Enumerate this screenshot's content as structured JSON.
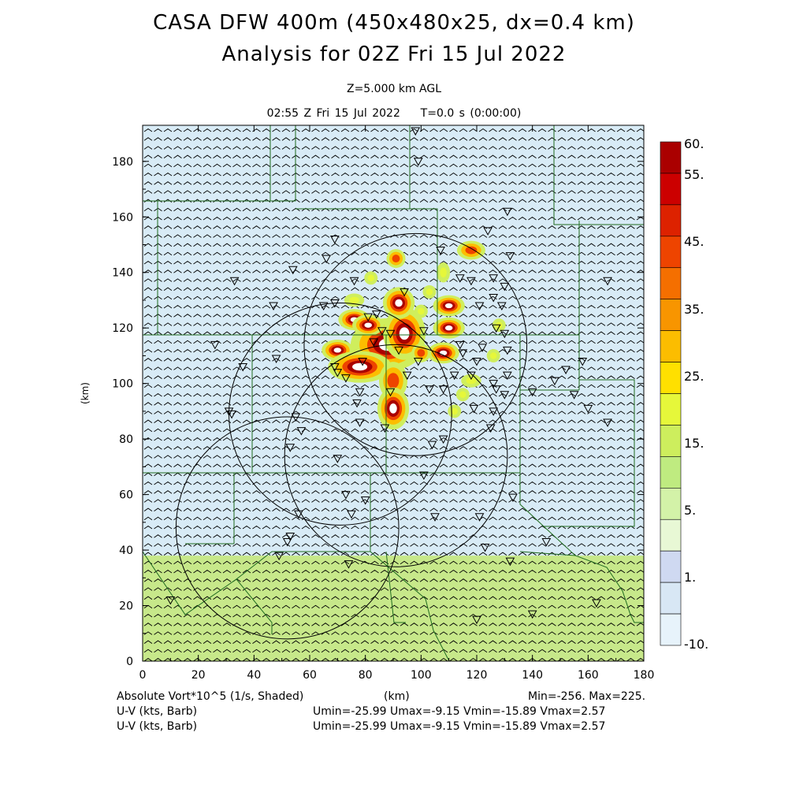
{
  "header": {
    "title_line1": "CASA DFW 400m (450x480x25, dx=0.4 km)",
    "title_line2": "Analysis for 02Z Fri 15 Jul 2022",
    "level": "Z=5.000 km AGL",
    "time": "02:55 Z Fri 15 Jul 2022    T=0.0 s (0:00:00)"
  },
  "axes": {
    "xlabel": "(km)",
    "ylabel": "(km)",
    "x_ticks": [
      "0",
      "20",
      "40",
      "60",
      "80",
      "100",
      "120",
      "140",
      "160",
      "180"
    ],
    "y_ticks": [
      "0",
      "20",
      "40",
      "60",
      "80",
      "100",
      "120",
      "140",
      "160",
      "180"
    ],
    "x_range": [
      0,
      180
    ],
    "y_range": [
      0,
      193
    ]
  },
  "colorbar": {
    "labels": [
      "60.",
      "55.",
      "45.",
      "35.",
      "25.",
      "15.",
      "5.",
      "1.",
      "-10."
    ],
    "colors": [
      "#aa0000",
      "#cc0000",
      "#dd2200",
      "#ee4400",
      "#f56f00",
      "#f89500",
      "#fcbd00",
      "#ffe000",
      "#e6f73a",
      "#cdee5d",
      "#bfeb80",
      "#d3f2a8",
      "#e8f8d5",
      "#cfd9f1",
      "#d8e7f5",
      "#e7f3fb"
    ]
  },
  "field": {
    "background_color": "#d8ebf6",
    "south_band_color": "#c7e88a",
    "south_band_top_km": 38,
    "wind_barb_color": "#000000",
    "boundary_color": "#1f6b1f"
  },
  "radars": [
    {
      "x": 98,
      "y": 114,
      "r": 40
    },
    {
      "x": 71,
      "y": 89,
      "r": 40
    },
    {
      "x": 91,
      "y": 74,
      "r": 40
    },
    {
      "x": 52,
      "y": 48,
      "r": 40
    }
  ],
  "storm_cells": [
    {
      "x": 88,
      "y": 114,
      "rx": 7,
      "ry": 5,
      "level": "high"
    },
    {
      "x": 94,
      "y": 118,
      "rx": 4,
      "ry": 5,
      "level": "high"
    },
    {
      "x": 92,
      "y": 129,
      "rx": 3,
      "ry": 3,
      "level": "high"
    },
    {
      "x": 76,
      "y": 123,
      "rx": 3,
      "ry": 2,
      "level": "high"
    },
    {
      "x": 81,
      "y": 121,
      "rx": 3,
      "ry": 2,
      "level": "high"
    },
    {
      "x": 70,
      "y": 112,
      "rx": 3,
      "ry": 2,
      "level": "high"
    },
    {
      "x": 78,
      "y": 106,
      "rx": 6,
      "ry": 3,
      "level": "high"
    },
    {
      "x": 90,
      "y": 101,
      "rx": 3,
      "ry": 4,
      "level": "mid"
    },
    {
      "x": 90,
      "y": 91,
      "rx": 3,
      "ry": 4,
      "level": "high"
    },
    {
      "x": 110,
      "y": 128,
      "rx": 3,
      "ry": 2,
      "level": "high"
    },
    {
      "x": 110,
      "y": 120,
      "rx": 3,
      "ry": 2,
      "level": "high"
    },
    {
      "x": 108,
      "y": 111,
      "rx": 3,
      "ry": 2,
      "level": "high"
    },
    {
      "x": 100,
      "y": 111,
      "rx": 2,
      "ry": 2,
      "level": "mid"
    },
    {
      "x": 118,
      "y": 148,
      "rx": 3,
      "ry": 2,
      "level": "mid"
    },
    {
      "x": 91,
      "y": 145,
      "rx": 2,
      "ry": 2,
      "level": "mid"
    },
    {
      "x": 118,
      "y": 101,
      "rx": 3,
      "ry": 2,
      "level": "low"
    },
    {
      "x": 128,
      "y": 121,
      "rx": 2,
      "ry": 2,
      "level": "low"
    },
    {
      "x": 108,
      "y": 140,
      "rx": 2,
      "ry": 3,
      "level": "low"
    },
    {
      "x": 82,
      "y": 138,
      "rx": 2,
      "ry": 2,
      "level": "low"
    },
    {
      "x": 76,
      "y": 130,
      "rx": 3,
      "ry": 2,
      "level": "low"
    },
    {
      "x": 115,
      "y": 96,
      "rx": 2,
      "ry": 2,
      "level": "low"
    },
    {
      "x": 112,
      "y": 90,
      "rx": 2,
      "ry": 2,
      "level": "low"
    },
    {
      "x": 100,
      "y": 126,
      "rx": 2,
      "ry": 2,
      "level": "low"
    },
    {
      "x": 103,
      "y": 133,
      "rx": 2,
      "ry": 2,
      "level": "low"
    },
    {
      "x": 126,
      "y": 110,
      "rx": 2,
      "ry": 2,
      "level": "low"
    }
  ],
  "stations": [
    [
      98,
      191
    ],
    [
      99,
      180
    ],
    [
      66,
      145
    ],
    [
      33,
      137
    ],
    [
      47,
      128
    ],
    [
      26,
      114
    ],
    [
      36,
      106
    ],
    [
      48,
      109
    ],
    [
      69,
      106
    ],
    [
      73,
      102
    ],
    [
      70,
      104
    ],
    [
      79,
      108
    ],
    [
      83,
      115
    ],
    [
      92,
      112
    ],
    [
      95,
      103
    ],
    [
      89,
      97
    ],
    [
      78,
      97
    ],
    [
      77,
      93
    ],
    [
      31,
      90
    ],
    [
      32,
      89
    ],
    [
      55,
      88
    ],
    [
      57,
      83
    ],
    [
      53,
      77
    ],
    [
      78,
      86
    ],
    [
      70,
      73
    ],
    [
      87,
      84
    ],
    [
      101,
      67
    ],
    [
      80,
      58
    ],
    [
      73,
      60
    ],
    [
      75,
      53
    ],
    [
      56,
      53
    ],
    [
      52,
      43
    ],
    [
      53,
      45
    ],
    [
      49,
      38
    ],
    [
      105,
      52
    ],
    [
      74,
      35
    ],
    [
      10,
      22
    ],
    [
      120,
      15
    ],
    [
      140,
      17
    ],
    [
      163,
      21
    ],
    [
      126,
      90
    ],
    [
      119,
      91
    ],
    [
      118,
      103
    ],
    [
      131,
      103
    ],
    [
      126,
      100
    ],
    [
      127,
      98
    ],
    [
      130,
      96
    ],
    [
      115,
      111
    ],
    [
      114,
      114
    ],
    [
      120,
      108
    ],
    [
      122,
      113
    ],
    [
      126,
      138
    ],
    [
      114,
      138
    ],
    [
      118,
      137
    ],
    [
      130,
      135
    ],
    [
      129,
      128
    ],
    [
      126,
      131
    ],
    [
      121,
      128
    ],
    [
      107,
      148
    ],
    [
      124,
      155
    ],
    [
      131,
      162
    ],
    [
      132,
      146
    ],
    [
      130,
      118
    ],
    [
      127,
      120
    ],
    [
      131,
      112
    ],
    [
      108,
      98
    ],
    [
      112,
      103
    ],
    [
      101,
      119
    ],
    [
      94,
      133
    ],
    [
      76,
      137
    ],
    [
      69,
      129
    ],
    [
      65,
      128
    ],
    [
      54,
      141
    ],
    [
      69,
      152
    ],
    [
      84,
      125
    ],
    [
      81,
      124
    ],
    [
      86,
      119
    ],
    [
      89,
      118
    ],
    [
      99,
      108
    ],
    [
      103,
      98
    ],
    [
      108,
      80
    ],
    [
      125,
      84
    ],
    [
      133,
      59
    ],
    [
      132,
      36
    ],
    [
      145,
      43
    ],
    [
      123,
      41
    ],
    [
      121,
      52
    ],
    [
      104,
      78
    ],
    [
      167,
      137
    ],
    [
      140,
      97
    ],
    [
      148,
      101
    ],
    [
      152,
      105
    ],
    [
      158,
      108
    ],
    [
      155,
      96
    ],
    [
      160,
      91
    ],
    [
      167,
      86
    ]
  ],
  "labels": {
    "shaded_field": "Absolute Vort*10^5 (1/s, Shaded)",
    "barb1": "U-V (kts, Barb)",
    "barb2": "U-V (kts, Barb)",
    "minmax": "Min=-256. Max=225.",
    "uv1": "Umin=-25.99 Umax=-9.15 Vmin=-15.89 Vmax=2.57",
    "uv2": "Umin=-25.99 Umax=-9.15 Vmin=-15.89 Vmax=2.57"
  }
}
